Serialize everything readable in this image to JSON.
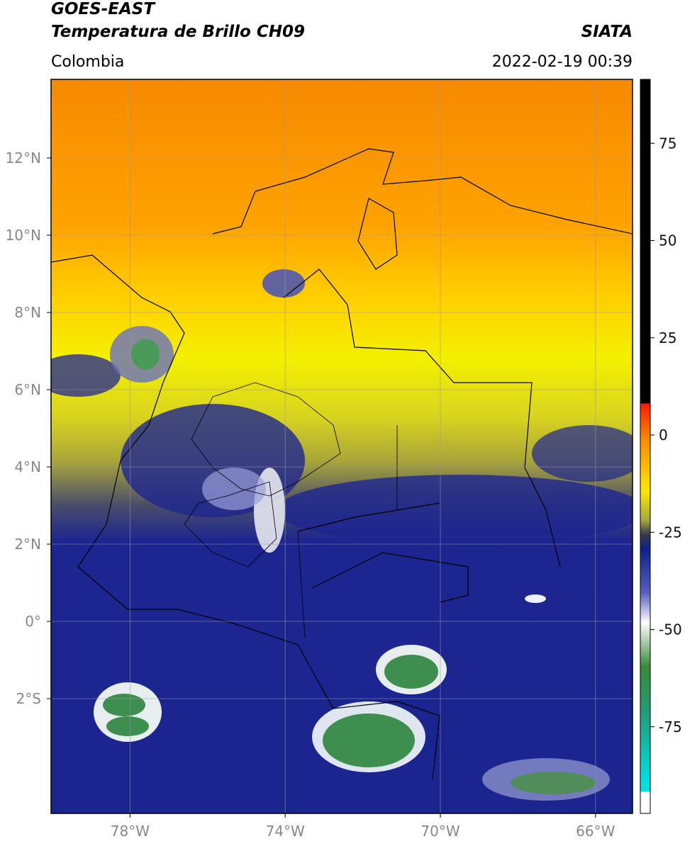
{
  "header": {
    "title": "GOES-EAST",
    "subtitle": "Temperatura de Brillo CH09",
    "region": "Colombia",
    "source": "SIATA",
    "datetime": "2022-02-19 00:39"
  },
  "map": {
    "lat_ticks": [
      {
        "value": 12,
        "label": "12°N"
      },
      {
        "value": 10,
        "label": "10°N"
      },
      {
        "value": 8,
        "label": "8°N"
      },
      {
        "value": 6,
        "label": "6°N"
      },
      {
        "value": 4,
        "label": "4°N"
      },
      {
        "value": 2,
        "label": "2°N"
      },
      {
        "value": 0,
        "label": "0°"
      },
      {
        "value": -2,
        "label": "2°S"
      }
    ],
    "lon_ticks": [
      {
        "value": -78,
        "label": "78°W"
      },
      {
        "value": -74,
        "label": "74°W"
      },
      {
        "value": -70,
        "label": "70°W"
      },
      {
        "value": -66,
        "label": "66°W"
      }
    ]
  },
  "colorbar": {
    "ticks": [
      75,
      50,
      25,
      0,
      -25,
      -50,
      -75
    ]
  }
}
